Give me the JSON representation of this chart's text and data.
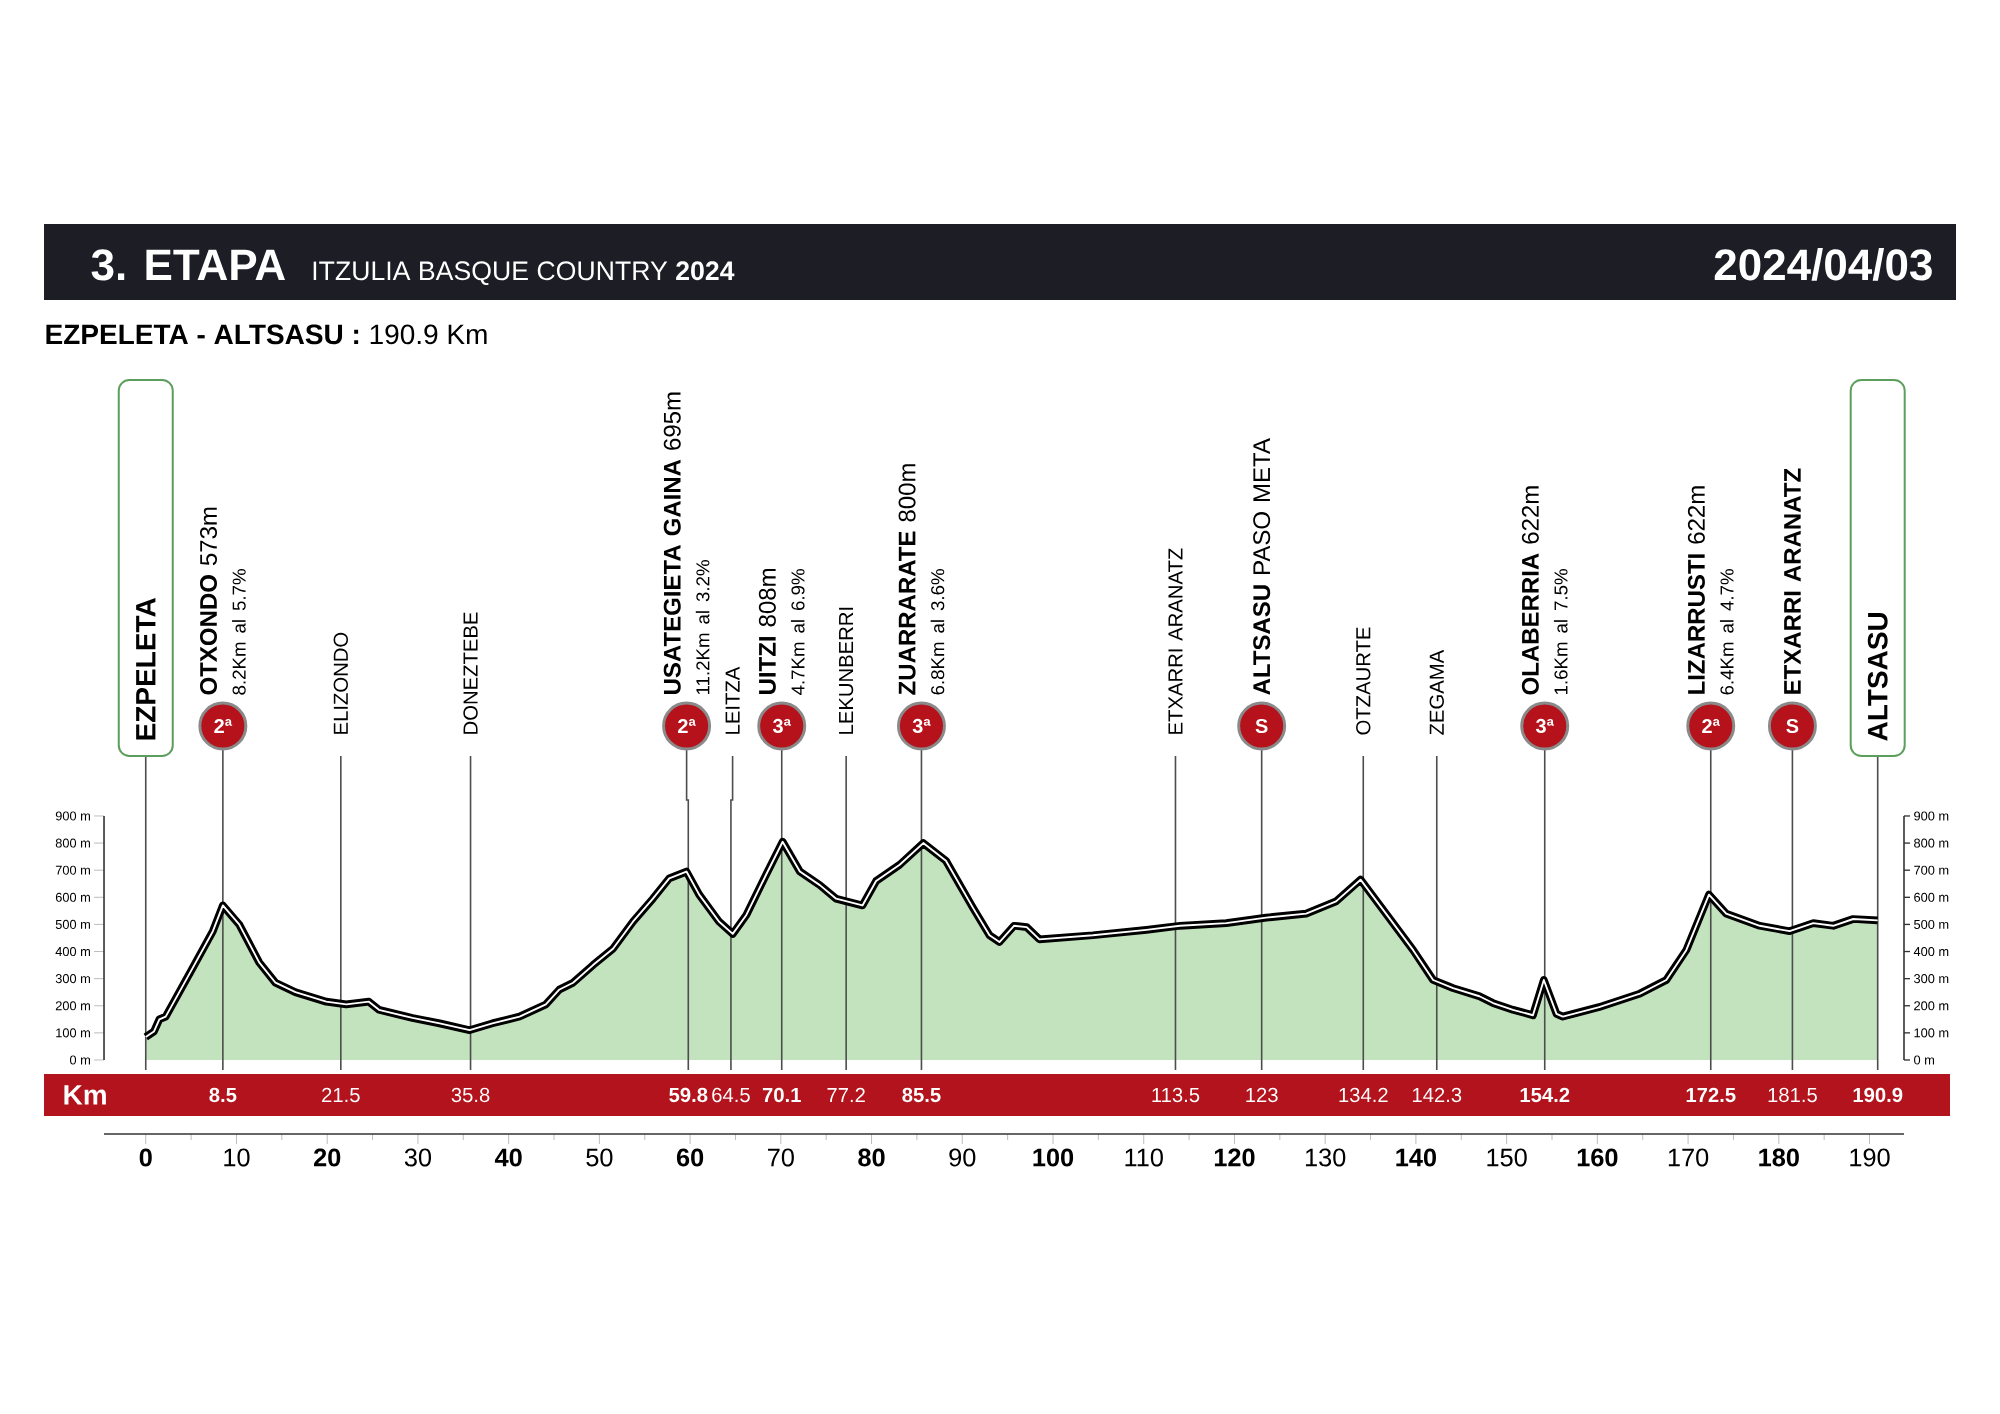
{
  "chart_data": {
    "type": "area",
    "title": "3. ETAPA",
    "subtitle": "ITZULIA BASQUE COUNTRY **2024**",
    "annotations": [
      "2024/04/03",
      "**EZPELETA - ALTSASU :** 190.9 Km",
      {
        "text": "2ª",
        "x": 8.5
      },
      {
        "text": "2ª",
        "x": 59.8
      },
      {
        "text": "3ª",
        "x": 70.1
      },
      {
        "text": "3ª",
        "x": 85.5
      },
      {
        "text": "S",
        "x": 123
      },
      {
        "text": "3ª",
        "x": 154.2
      },
      {
        "text": "2ª",
        "x": 172.5
      },
      {
        "text": "S",
        "x": 181.5
      }
    ],
    "x": [
      0.0,
      0.9,
      1.5,
      2.2,
      5.1,
      7.4,
      8.5,
      10.3,
      12.5,
      14.3,
      16.5,
      19.9,
      22.1,
      24.6,
      25.7,
      29.4,
      32.4,
      35.7,
      38.2,
      41.2,
      44.1,
      45.6,
      47.1,
      49.3,
      51.5,
      53.7,
      55.9,
      57.7,
      59.6,
      61.0,
      63.2,
      64.7,
      66.2,
      68.4,
      70.2,
      72.1,
      74.3,
      76.1,
      79.0,
      80.5,
      83.1,
      85.7,
      88.2,
      91.2,
      93.0,
      94.1,
      95.7,
      97.1,
      98.5,
      104.4,
      110.3,
      114.0,
      119.1,
      123.5,
      127.9,
      131.2,
      133.9,
      136.7,
      139.7,
      141.9,
      144.1,
      147.0,
      148.5,
      150.7,
      152.9,
      154.1,
      155.5,
      156.2,
      160.2,
      164.7,
      167.6,
      169.8,
      172.3,
      174.2,
      177.9,
      181.2,
      183.8,
      186.0,
      188.2,
      190.9
    ],
    "values": [
      85,
      105,
      150,
      160,
      335,
      475,
      570,
      500,
      360,
      285,
      250,
      215,
      205,
      215,
      185,
      155,
      135,
      110,
      135,
      160,
      205,
      260,
      285,
      350,
      410,
      510,
      595,
      670,
      695,
      610,
      510,
      465,
      535,
      685,
      805,
      695,
      645,
      595,
      570,
      660,
      720,
      800,
      735,
      560,
      460,
      435,
      495,
      490,
      445,
      460,
      480,
      495,
      505,
      525,
      540,
      585,
      665,
      540,
      405,
      295,
      265,
      235,
      210,
      185,
      165,
      295,
      170,
      160,
      195,
      245,
      295,
      405,
      610,
      540,
      495,
      475,
      505,
      495,
      520,
      515
    ],
    "color": "#c2e3bd",
    "xlim": [
      -4.6,
      193.8
    ],
    "xticks": [
      0,
      10,
      20,
      30,
      40,
      50,
      60,
      70,
      80,
      90,
      100,
      110,
      120,
      130,
      140,
      150,
      160,
      170,
      180,
      190
    ],
    "ylim": [
      0,
      900
    ],
    "yticks": [
      {
        "value": 0,
        "label": "0 m"
      },
      {
        "value": 100,
        "label": "100 m"
      },
      {
        "value": 200,
        "label": "200 m"
      },
      {
        "value": 300,
        "label": "300 m"
      },
      {
        "value": 400,
        "label": "400 m"
      },
      {
        "value": 500,
        "label": "500 m"
      },
      {
        "value": 600,
        "label": "600 m"
      },
      {
        "value": 700,
        "label": "700 m"
      },
      {
        "value": 800,
        "label": "800 m"
      },
      {
        "value": 900,
        "label": "900 m"
      }
    ],
    "y2lim": [
      0,
      900
    ],
    "y2ticks": [
      {
        "value": 0,
        "label": "0 m"
      },
      {
        "value": 100,
        "label": "100 m"
      },
      {
        "value": 200,
        "label": "200 m"
      },
      {
        "value": 300,
        "label": "300 m"
      },
      {
        "value": 400,
        "label": "400 m"
      },
      {
        "value": 500,
        "label": "500 m"
      },
      {
        "value": 600,
        "label": "600 m"
      },
      {
        "value": 700,
        "label": "700 m"
      },
      {
        "value": 800,
        "label": "800 m"
      },
      {
        "value": 900,
        "label": "900 m"
      }
    ],
    "x2lim": [
      -4.6,
      193.8
    ],
    "x2label": "Km",
    "x2ticks": [
      {
        "value": 8.5,
        "label": "**8.5**"
      },
      21.5,
      35.8,
      {
        "value": 59.8,
        "label": "**59.8**"
      },
      64.5,
      {
        "value": 70.1,
        "label": "**70.1**"
      },
      77.2,
      {
        "value": 85.5,
        "label": "**85.5**"
      },
      113.5,
      123,
      134.2,
      142.3,
      {
        "value": 154.2,
        "label": "**154.2**"
      },
      {
        "value": 172.5,
        "label": "**172.5**"
      },
      181.5,
      {
        "value": 190.9,
        "label": "**190.9**"
      }
    ],
    "ref_lines": [
      {
        "axis": "x",
        "value": 0,
        "label": "EZPELETA"
      },
      {
        "axis": "x",
        "value": 8.5,
        "label": "**OTXONDO** 573m\n8.2Km al 5.7%"
      },
      {
        "axis": "x",
        "value": 21.5,
        "label": "ELIZONDO"
      },
      {
        "axis": "x",
        "value": 35.8,
        "label": "DONEZTEBE"
      },
      {
        "axis": "x",
        "value": 59.8,
        "label": "**USATEGIETA GAINA** 695m\n11.2Km al 3.2%"
      },
      {
        "axis": "x",
        "value": 64.5,
        "label": "LEITZA"
      },
      {
        "axis": "x",
        "value": 70.1,
        "label": "**UITZI** 808m\n4.7Km al 6.9%"
      },
      {
        "axis": "x",
        "value": 77.2,
        "label": "LEKUNBERRI"
      },
      {
        "axis": "x",
        "value": 85.5,
        "label": "**ZUARRARATE** 800m\n6.8Km al 3.6%"
      },
      {
        "axis": "x",
        "value": 113.5,
        "label": "ETXARRI ARANATZ"
      },
      {
        "axis": "x",
        "value": 123,
        "label": "**ALTSASU** PASO META"
      },
      {
        "axis": "x",
        "value": 134.2,
        "label": "OTZAURTE"
      },
      {
        "axis": "x",
        "value": 142.3,
        "label": "ZEGAMA"
      },
      {
        "axis": "x",
        "value": 154.2,
        "label": "**OLABERRIA** 622m\n1.6Km al 7.5%"
      },
      {
        "axis": "x",
        "value": 172.5,
        "label": "**LIZARRUSTI** 622m\n6.4Km al 4.7%"
      },
      {
        "axis": "x",
        "value": 181.5,
        "label": "**ETXARRI ARANATZ**"
      },
      {
        "axis": "x",
        "value": 190.9,
        "label": "ALTSASU"
      }
    ]
  }
}
